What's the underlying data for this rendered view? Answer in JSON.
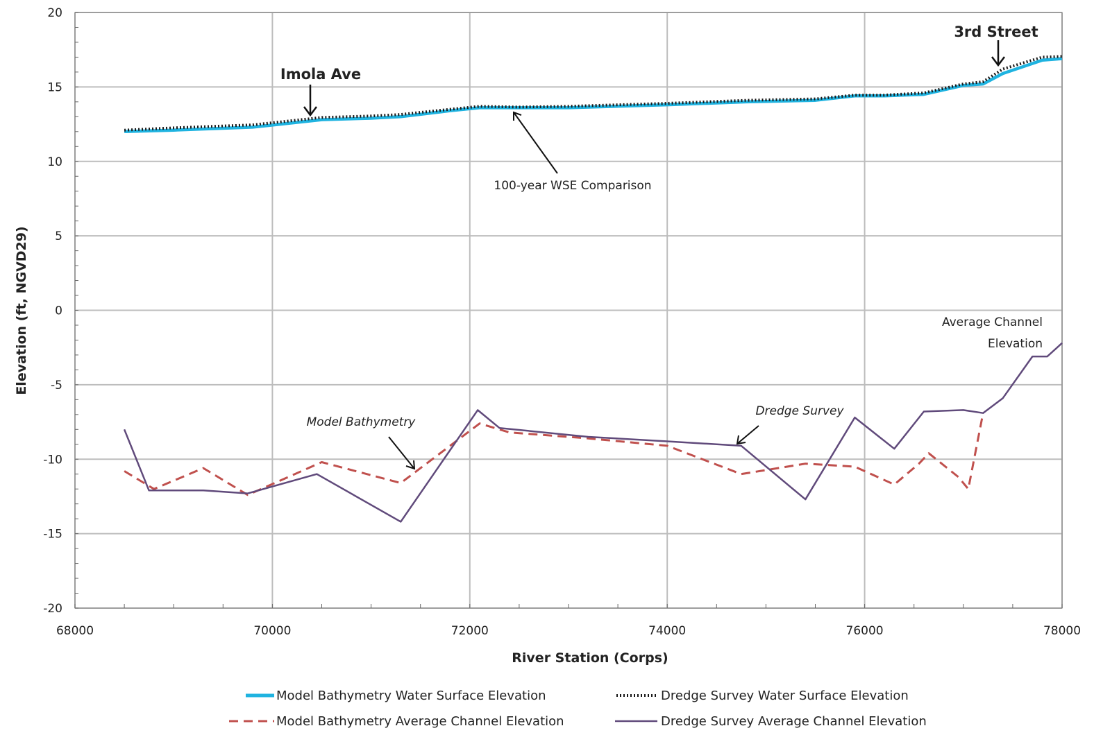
{
  "chart_data": {
    "type": "line",
    "xlabel": "River Station (Corps)",
    "ylabel": "Elevation (ft, NGVD29)",
    "xlim": [
      68000,
      78000
    ],
    "ylim": [
      -20,
      20
    ],
    "xticks": [
      "68000",
      "70000",
      "72000",
      "74000",
      "76000",
      "78000"
    ],
    "yticks": [
      "-20",
      "-15",
      "-10",
      "-5",
      "0",
      "5",
      "10",
      "15",
      "20"
    ],
    "grid": true,
    "legend_position": "bottom",
    "series": [
      {
        "name": "Model Bathymetry Water Surface Elevation",
        "color": "#1fb3e0",
        "style": "solid-thick",
        "x": [
          68500,
          69000,
          69800,
          70500,
          71000,
          71300,
          71800,
          72100,
          72500,
          73000,
          74000,
          74800,
          75500,
          75900,
          76200,
          76600,
          77000,
          77200,
          77400,
          77800,
          78000
        ],
        "y": [
          12.0,
          12.1,
          12.3,
          12.8,
          12.9,
          13.0,
          13.4,
          13.6,
          13.6,
          13.6,
          13.8,
          14.0,
          14.1,
          14.4,
          14.4,
          14.5,
          15.1,
          15.2,
          15.9,
          16.8,
          16.9
        ]
      },
      {
        "name": "Dredge Survey Water Surface Elevation",
        "color": "#1a1a1a",
        "style": "dotted",
        "x": [
          68500,
          69000,
          69800,
          70500,
          71000,
          71300,
          71800,
          72100,
          72500,
          73000,
          74000,
          74800,
          75500,
          75900,
          76200,
          76600,
          77000,
          77200,
          77400,
          77800,
          78000
        ],
        "y": [
          12.1,
          12.25,
          12.45,
          12.95,
          13.05,
          13.15,
          13.5,
          13.7,
          13.65,
          13.7,
          13.9,
          14.1,
          14.2,
          14.45,
          14.45,
          14.6,
          15.2,
          15.35,
          16.2,
          17.0,
          17.05
        ]
      },
      {
        "name": "Model Bathymetry Average Channel Elevation",
        "color": "#c0504d",
        "style": "dashed",
        "x": [
          68500,
          68800,
          69300,
          69750,
          70500,
          71300,
          72100,
          72400,
          73200,
          74000,
          74750,
          75400,
          75900,
          76300,
          76550,
          76650,
          76950,
          77050,
          77200
        ],
        "y": [
          -10.8,
          -12.0,
          -10.6,
          -12.4,
          -10.2,
          -11.6,
          -7.6,
          -8.2,
          -8.6,
          -9.1,
          -11.0,
          -10.3,
          -10.5,
          -11.7,
          -10.3,
          -9.6,
          -11.2,
          -12.0,
          -6.9
        ]
      },
      {
        "name": "Dredge Survey Average Channel Elevation",
        "color": "#604a7b",
        "style": "solid",
        "x": [
          68500,
          68750,
          69300,
          69750,
          70450,
          71300,
          72080,
          72300,
          73200,
          74000,
          74750,
          75400,
          75900,
          76300,
          76600,
          77000,
          77200,
          77400,
          77700,
          77850,
          78000
        ],
        "y": [
          -8.0,
          -12.1,
          -12.1,
          -12.3,
          -11.0,
          -14.2,
          -6.7,
          -7.9,
          -8.5,
          -8.8,
          -9.1,
          -12.7,
          -7.2,
          -9.3,
          -6.8,
          -6.7,
          -6.9,
          -5.9,
          -3.1,
          -3.1,
          -2.2
        ]
      }
    ],
    "annotations": [
      {
        "text": "3rd Street",
        "style": "bold"
      },
      {
        "text": "Imola Ave",
        "style": "bold"
      },
      {
        "text": "100-year WSE Comparison",
        "style": "normal"
      },
      {
        "text": "Average Channel",
        "style": "normal"
      },
      {
        "text": "Elevation",
        "style": "normal"
      },
      {
        "text": "Model Bathymetry",
        "style": "italic"
      },
      {
        "text": "Dredge Survey",
        "style": "italic"
      }
    ]
  }
}
